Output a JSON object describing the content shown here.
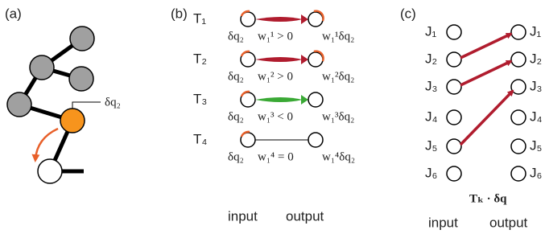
{
  "panel_a": {
    "label": "(a)",
    "joint_label": "δq₂"
  },
  "panel_b": {
    "label": "(b)",
    "rows": [
      {
        "task": "T₁",
        "input": "δq₂",
        "weight": "w₁¹ > 0",
        "output": "w₁¹δq₂"
      },
      {
        "task": "T₂",
        "input": "δq₂",
        "weight": "w₁² > 0",
        "output": "w₁²δq₂"
      },
      {
        "task": "T₃",
        "input": "δq₂",
        "weight": "w₁³ < 0",
        "output": "w₁³δq₂"
      },
      {
        "task": "T₄",
        "input": "δq₂",
        "weight": "w₁⁴ = 0",
        "output": "w₁⁴δq₂"
      }
    ],
    "input_label": "input",
    "output_label": "output"
  },
  "panel_c": {
    "label": "(c)",
    "input_joints": [
      "J₁",
      "J₂",
      "J₃",
      "J₄",
      "J₅",
      "J₆"
    ],
    "output_joints": [
      "J₁",
      "J₂",
      "J₃",
      "J₄",
      "J₅",
      "J₆"
    ],
    "caption": "Tₖ · δq",
    "input_label": "input",
    "output_label": "output"
  }
}
